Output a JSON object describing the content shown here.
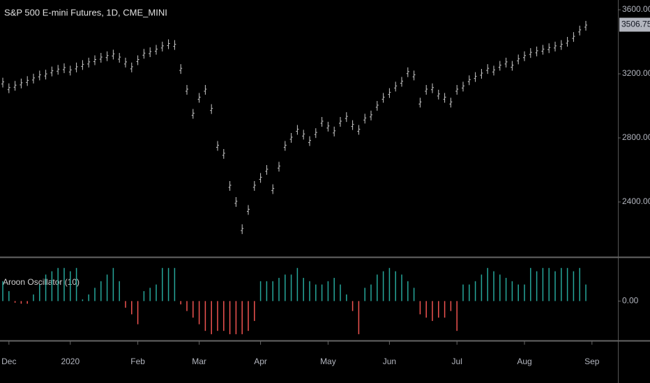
{
  "chart_data": [
    {
      "type": "ohlc",
      "title": "S&P 500 E-mini Futures, 1D, CME_MINI",
      "color": "#c8c8c8",
      "values": [
        3145,
        3110,
        3125,
        3140,
        3155,
        3170,
        3190,
        3195,
        3215,
        3225,
        3235,
        3220,
        3240,
        3255,
        3270,
        3285,
        3300,
        3310,
        3320,
        3300,
        3270,
        3240,
        3285,
        3325,
        3335,
        3350,
        3370,
        3385,
        3380,
        3230,
        3100,
        2950,
        3050,
        3100,
        2980,
        2750,
        2700,
        2500,
        2400,
        2230,
        2350,
        2500,
        2550,
        2600,
        2480,
        2620,
        2750,
        2800,
        2850,
        2820,
        2780,
        2830,
        2900,
        2870,
        2840,
        2900,
        2930,
        2880,
        2850,
        2920,
        2940,
        3000,
        3050,
        3080,
        3120,
        3150,
        3210,
        3190,
        3020,
        3100,
        3110,
        3070,
        3050,
        3020,
        3100,
        3120,
        3160,
        3180,
        3200,
        3230,
        3220,
        3250,
        3270,
        3250,
        3290,
        3310,
        3330,
        3340,
        3350,
        3360,
        3370,
        3380,
        3400,
        3430,
        3470,
        3500,
        null
      ],
      "last_price": 3506.75,
      "ylim": [
        2061,
        3661
      ],
      "yticks": [
        {
          "value": 3600,
          "label": "3600.00"
        },
        {
          "value": 3200,
          "label": "3200.00"
        },
        {
          "value": 2800,
          "label": "2800.00"
        },
        {
          "value": 2400,
          "label": "2400.00"
        }
      ]
    },
    {
      "type": "bar",
      "title": "Aroon Oscillator (10)",
      "positive_color": "#26a69a",
      "negative_color": "#ef5350",
      "categories": [
        null,
        "Dec",
        null,
        null,
        null,
        null,
        null,
        null,
        null,
        null,
        null,
        "2020",
        null,
        null,
        null,
        null,
        null,
        null,
        null,
        null,
        null,
        null,
        "Feb",
        null,
        null,
        null,
        null,
        null,
        null,
        null,
        null,
        null,
        "Mar",
        null,
        null,
        null,
        null,
        null,
        null,
        null,
        null,
        null,
        "Apr",
        null,
        null,
        null,
        null,
        null,
        null,
        null,
        null,
        null,
        null,
        "May",
        null,
        null,
        null,
        null,
        null,
        null,
        null,
        null,
        null,
        "Jun",
        null,
        null,
        null,
        null,
        null,
        null,
        null,
        null,
        null,
        null,
        "Jul",
        null,
        null,
        null,
        null,
        null,
        null,
        null,
        null,
        null,
        null,
        "Aug",
        null,
        null,
        null,
        null,
        null,
        null,
        null,
        null,
        null,
        null,
        "Sep"
      ],
      "values": [
        60,
        30,
        -5,
        -8,
        -8,
        20,
        50,
        80,
        90,
        100,
        100,
        90,
        100,
        5,
        20,
        40,
        60,
        80,
        100,
        60,
        -20,
        -40,
        -70,
        30,
        40,
        50,
        100,
        100,
        100,
        -10,
        -30,
        -50,
        -70,
        -90,
        -100,
        -90,
        -90,
        -100,
        -100,
        -100,
        -90,
        -60,
        60,
        60,
        60,
        70,
        80,
        80,
        100,
        70,
        60,
        50,
        50,
        60,
        70,
        50,
        20,
        -30,
        -100,
        40,
        50,
        80,
        90,
        100,
        90,
        80,
        60,
        40,
        -40,
        -50,
        -60,
        -50,
        -50,
        -30,
        -90,
        50,
        50,
        60,
        80,
        100,
        90,
        80,
        70,
        60,
        50,
        50,
        100,
        90,
        100,
        100,
        90,
        100,
        100,
        90,
        100,
        50,
        null
      ],
      "ylim": [
        -117,
        129
      ],
      "yticks": [
        {
          "value": 0,
          "label": "0.00"
        }
      ]
    }
  ]
}
